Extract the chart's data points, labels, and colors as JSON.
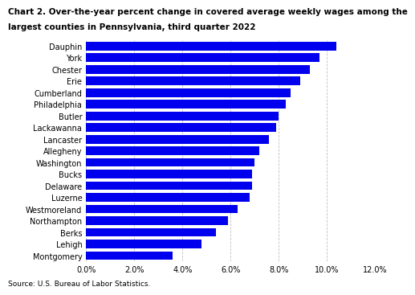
{
  "title_line1": "Chart 2. Over-the-year percent change in covered average weekly wages among the",
  "title_line2": "largest counties in Pennsylvania, third quarter 2022",
  "counties": [
    "Montgomery",
    "Lehigh",
    "Berks",
    "Northampton",
    "Westmoreland",
    "Luzerne",
    "Delaware",
    "Bucks",
    "Washington",
    "Allegheny",
    "Lancaster",
    "Lackawanna",
    "Butler",
    "Philadelphia",
    "Cumberland",
    "Erie",
    "Chester",
    "York",
    "Dauphin"
  ],
  "values": [
    3.6,
    4.8,
    5.4,
    5.9,
    6.3,
    6.8,
    6.9,
    6.9,
    7.0,
    7.2,
    7.6,
    7.9,
    8.0,
    8.3,
    8.5,
    8.9,
    9.3,
    9.7,
    10.4
  ],
  "bar_color": "#0000ee",
  "xlim": [
    0,
    12.0
  ],
  "xtick_values": [
    0.0,
    2.0,
    4.0,
    6.0,
    8.0,
    10.0,
    12.0
  ],
  "source_text": "Source: U.S. Bureau of Labor Statistics.",
  "background_color": "#ffffff",
  "grid_color": "#c0c0c0",
  "title_fontsize": 7.5,
  "label_fontsize": 7.0,
  "tick_fontsize": 7.0,
  "source_fontsize": 6.5,
  "bar_height": 0.75
}
